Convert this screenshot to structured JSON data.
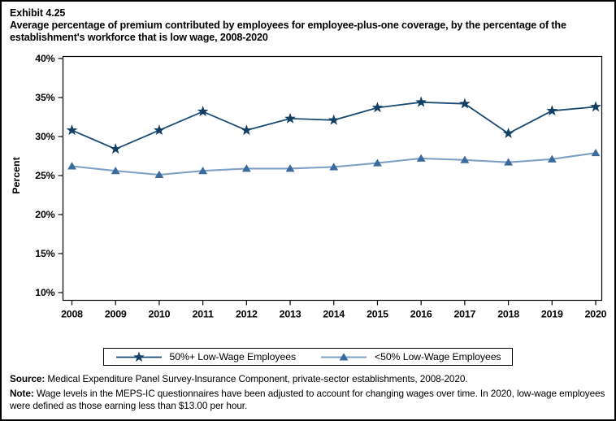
{
  "title": {
    "exhibit": "Exhibit 4.25",
    "text": "Average percentage of premium contributed by employees for employee-plus-one coverage, by the percentage of the establishment's workforce that is low wage, 2008-2020"
  },
  "chart_data": {
    "type": "line",
    "x": [
      2008,
      2009,
      2010,
      2011,
      2012,
      2013,
      2014,
      2015,
      2016,
      2017,
      2018,
      2019,
      2020
    ],
    "series": [
      {
        "name": "50%+ Low-Wage Employees",
        "marker": "star",
        "marker_color": "#123f63",
        "line_color": "#1b4a74",
        "values": [
          30.8,
          28.4,
          30.8,
          33.2,
          30.8,
          32.3,
          32.1,
          33.7,
          34.4,
          34.2,
          30.4,
          33.3,
          33.8
        ]
      },
      {
        "name": "<50% Low-Wage Employees",
        "marker": "triangle",
        "marker_color": "#3a6a9e",
        "line_color": "#7f9fc3",
        "values": [
          26.2,
          25.6,
          25.1,
          25.6,
          25.9,
          25.9,
          26.1,
          26.6,
          27.2,
          27.0,
          26.7,
          27.1,
          27.9
        ]
      }
    ],
    "ylabel": "Percent",
    "xlabel": "",
    "ylim": [
      10,
      40
    ],
    "yticks": [
      40,
      35,
      30,
      25,
      20,
      15,
      10
    ],
    "ytick_labels": [
      "40%",
      "35%",
      "30%",
      "25%",
      "20%",
      "15%",
      "10%"
    ],
    "grid": false,
    "legend_position": "bottom",
    "axis_color": "#000000"
  },
  "footnotes": {
    "source_label": "Source:",
    "source_text": " Medical Expenditure Panel Survey-Insurance Component, private-sector establishments, 2008-2020.",
    "note_label": "Note:",
    "note_text": " Wage levels in the MEPS-IC questionnaires have been adjusted to account for changing wages over time.  In 2020, low-wage employees were defined as those earning less than $13.00 per hour."
  }
}
